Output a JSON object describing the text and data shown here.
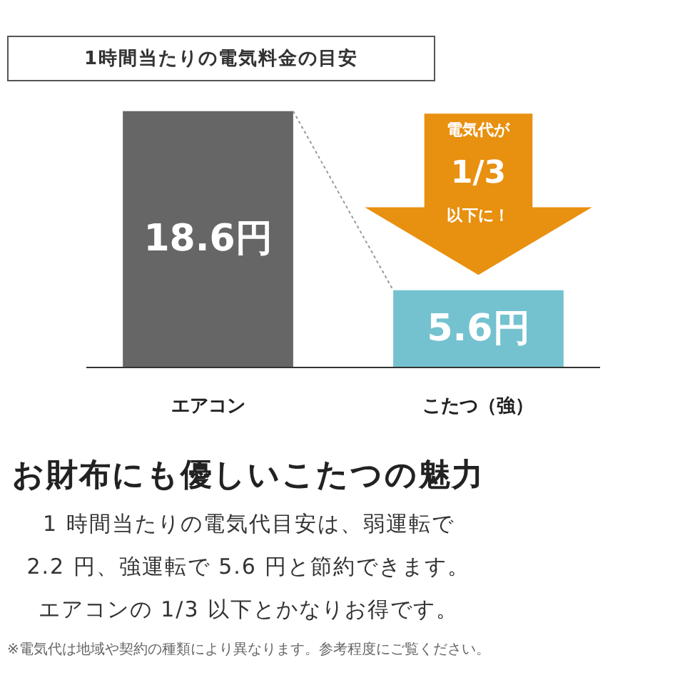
{
  "chart_data": {
    "type": "bar",
    "title": "1時間当たりの電気料金の目安",
    "categories": [
      "エアコン",
      "こたつ（強）"
    ],
    "values": [
      18.6,
      5.6
    ],
    "value_labels": [
      "18.6円",
      "5.6円"
    ],
    "colors": [
      "#666666",
      "#74c2d0"
    ],
    "tick_labels": "x",
    "grid": false,
    "annotations": [
      "電気代が\n1/3\n以下に！",
      "お財布にも優しいこたつの魅力",
      "1 時間当たりの電気代目安は、弱運転で",
      "2.2 円、強運転で 5.6 円と節約できます。",
      "エアコンの 1/3 以下とかなりお得です。",
      "※電気代は地域や契約の種類により異なります。参考程度にご覧ください。"
    ]
  }
}
